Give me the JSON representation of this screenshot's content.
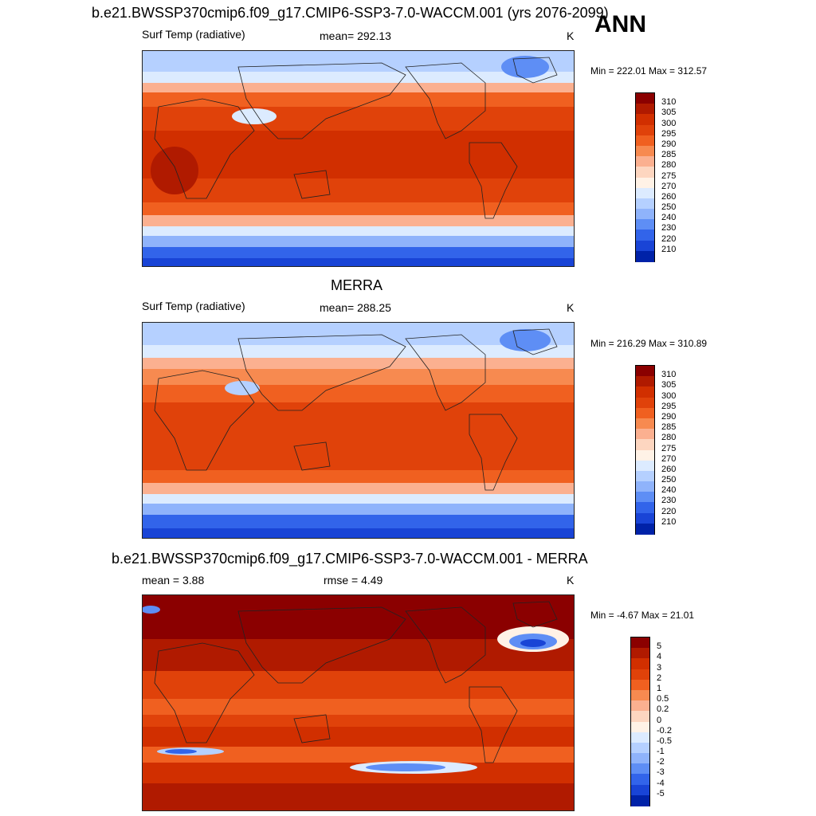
{
  "season": "ANN",
  "panels": [
    {
      "title": "b.e21.BWSSP370cmip6.f09_g17.CMIP6-SSP3-7.0-WACCM.001 (yrs 2076-2099)",
      "left": "Surf Temp (radiative)",
      "center": "mean= 292.13",
      "units": "K",
      "minmax": "Min = 222.01 Max = 312.57",
      "kind": "abs"
    },
    {
      "title": "MERRA",
      "left": "Surf Temp (radiative)",
      "center": "mean= 288.25",
      "units": "K",
      "minmax": "Min = 216.29 Max = 310.89",
      "kind": "abs"
    },
    {
      "title": "b.e21.BWSSP370cmip6.f09_g17.CMIP6-SSP3-7.0-WACCM.001 - MERRA",
      "left": "mean =   3.88",
      "center": "rmse =   4.49",
      "units": "K",
      "minmax": "Min =  -4.67 Max =  21.01",
      "kind": "diff"
    }
  ],
  "colorbars": {
    "abs": {
      "labels": [
        "310",
        "305",
        "300",
        "295",
        "290",
        "285",
        "280",
        "275",
        "270",
        "260",
        "250",
        "240",
        "230",
        "220",
        "210"
      ],
      "colors": [
        "#8b0000",
        "#b01a00",
        "#d12f00",
        "#e0420a",
        "#f06020",
        "#f78a50",
        "#fbb090",
        "#fdd6c0",
        "#fff2e6",
        "#dcebff",
        "#b5d0ff",
        "#8fb3fb",
        "#5e8ef5",
        "#3264ea",
        "#1944d6",
        "#0022a8"
      ]
    },
    "diff": {
      "labels": [
        "5",
        "4",
        "3",
        "2",
        "1",
        "0.5",
        "0.2",
        "0",
        "-0.2",
        "-0.5",
        "-1",
        "-2",
        "-3",
        "-4",
        "-5"
      ],
      "colors": [
        "#8b0000",
        "#b01a00",
        "#d12f00",
        "#e0420a",
        "#f06020",
        "#f78a50",
        "#fbb090",
        "#fdd6c0",
        "#fff2e6",
        "#dcebff",
        "#b5d0ff",
        "#8fb3fb",
        "#5e8ef5",
        "#3264ea",
        "#1944d6",
        "#0022a8"
      ]
    }
  }
}
